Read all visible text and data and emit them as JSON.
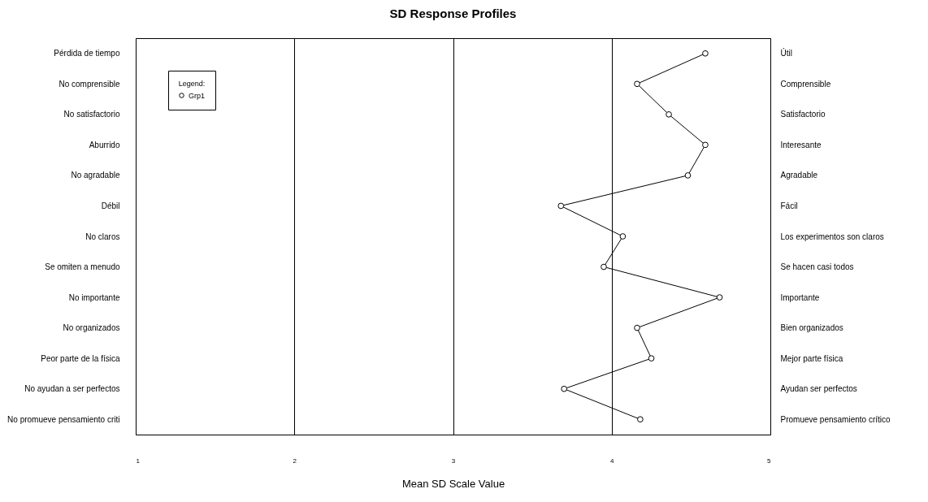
{
  "chart_data": {
    "type": "line",
    "orientation": "horizontal",
    "title": "SD Response Profiles",
    "xlabel": "Mean SD Scale Value",
    "legend_title": "Legend:",
    "legend": "top left",
    "grid": "x",
    "marker": "circle",
    "categories": [
      "Pérdida de tiempo",
      "No comprensible",
      "No satisfactorio",
      "Aburrido",
      "No agradable",
      "Débil",
      "No claros",
      "Se omiten a menudo",
      "No importante",
      "No organizados",
      "Peor parte de la física",
      "No ayudan a ser perfectos",
      "No promueve pensamiento criti"
    ],
    "y2_categories": [
      "Útil",
      "Comprensible",
      "Satisfactorio",
      "Interesante",
      "Agradable",
      "Fácil",
      "Los experimentos son claros",
      "Se hacen casi todos",
      "Importante",
      "Bien organizados",
      "Mejor parte física",
      "Ayudan ser perfectos",
      "Promueve pensamiento crítico"
    ],
    "xlim": [
      1,
      5
    ],
    "xticks": [
      1,
      2,
      3,
      4,
      5
    ],
    "series": [
      {
        "name": "Grp1",
        "color": "#000000",
        "values": [
          4.59,
          4.16,
          4.36,
          4.59,
          4.48,
          3.68,
          4.07,
          3.95,
          4.68,
          4.16,
          4.25,
          3.7,
          4.18
        ]
      }
    ]
  }
}
